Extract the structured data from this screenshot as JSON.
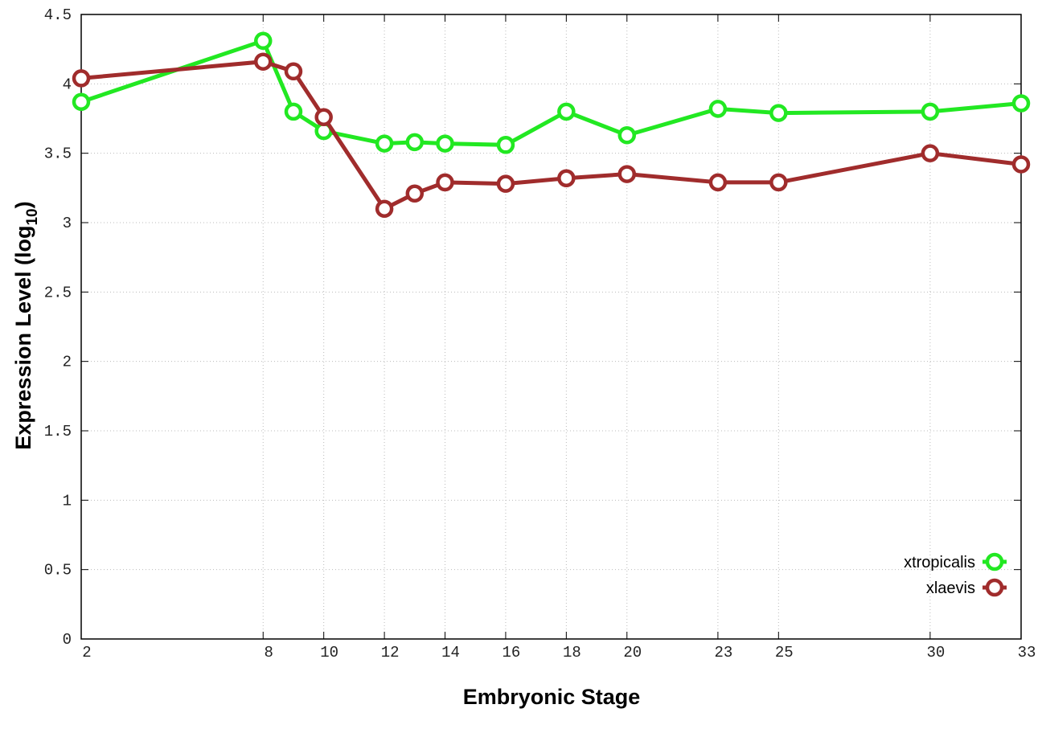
{
  "chart_data": {
    "type": "line",
    "xlabel": "Embryonic Stage",
    "ylabel": [
      "Expression Level (log",
      "10",
      ")"
    ],
    "x": [
      2,
      8,
      9,
      10,
      12,
      13,
      14,
      16,
      18,
      20,
      23,
      25,
      30,
      33
    ],
    "series": [
      {
        "name": "xtropicalis",
        "color": "#22e822",
        "values": [
          3.87,
          4.31,
          3.8,
          3.66,
          3.57,
          3.58,
          3.57,
          3.56,
          3.8,
          3.63,
          3.82,
          3.79,
          3.8,
          3.86
        ]
      },
      {
        "name": "xlaevis",
        "color": "#a02c2c",
        "values": [
          4.04,
          4.16,
          4.09,
          3.76,
          3.1,
          3.21,
          3.29,
          3.28,
          3.32,
          3.35,
          3.29,
          3.29,
          3.5,
          3.42
        ]
      }
    ],
    "xlim": [
      2,
      33
    ],
    "xticks": [
      2,
      8,
      10,
      12,
      14,
      16,
      18,
      20,
      23,
      25,
      30,
      33
    ],
    "ylim": [
      0,
      4.5
    ],
    "yticks": [
      0,
      0.5,
      1,
      1.5,
      2,
      2.5,
      3,
      3.5,
      4,
      4.5
    ],
    "grid": true,
    "legend": "bottom-right"
  }
}
